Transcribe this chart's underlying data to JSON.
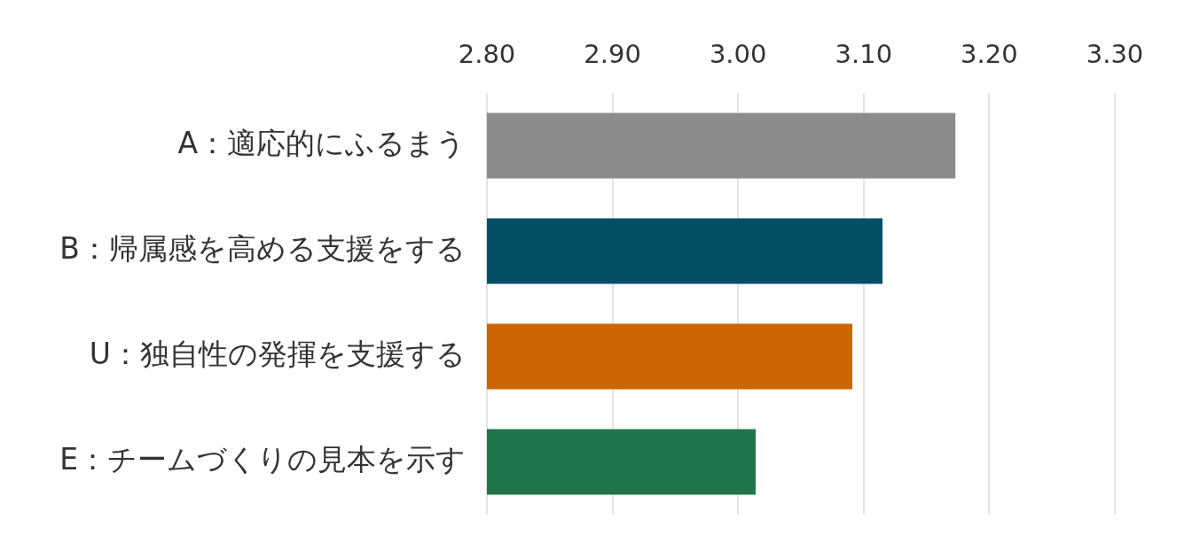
{
  "chart_data": {
    "type": "bar",
    "orientation": "horizontal",
    "categories": [
      "A：適応的にふるまう",
      "B：帰属感を高める支援をする",
      "U：独自性の発揮を支援する",
      "E：チームづくりの見本を示す"
    ],
    "values": [
      3.173,
      3.115,
      3.091,
      3.014
    ],
    "colors": [
      "#8c8c8c",
      "#034f66",
      "#cc6605",
      "#1f764b"
    ],
    "xlim": [
      2.8,
      3.3
    ],
    "xticks": [
      {
        "value": 2.8,
        "label": "2.80"
      },
      {
        "value": 2.9,
        "label": "2.90"
      },
      {
        "value": 3.0,
        "label": "3.00"
      },
      {
        "value": 3.1,
        "label": "3.10"
      },
      {
        "value": 3.2,
        "label": "3.20"
      },
      {
        "value": 3.3,
        "label": "3.30"
      }
    ],
    "grid": "x"
  }
}
